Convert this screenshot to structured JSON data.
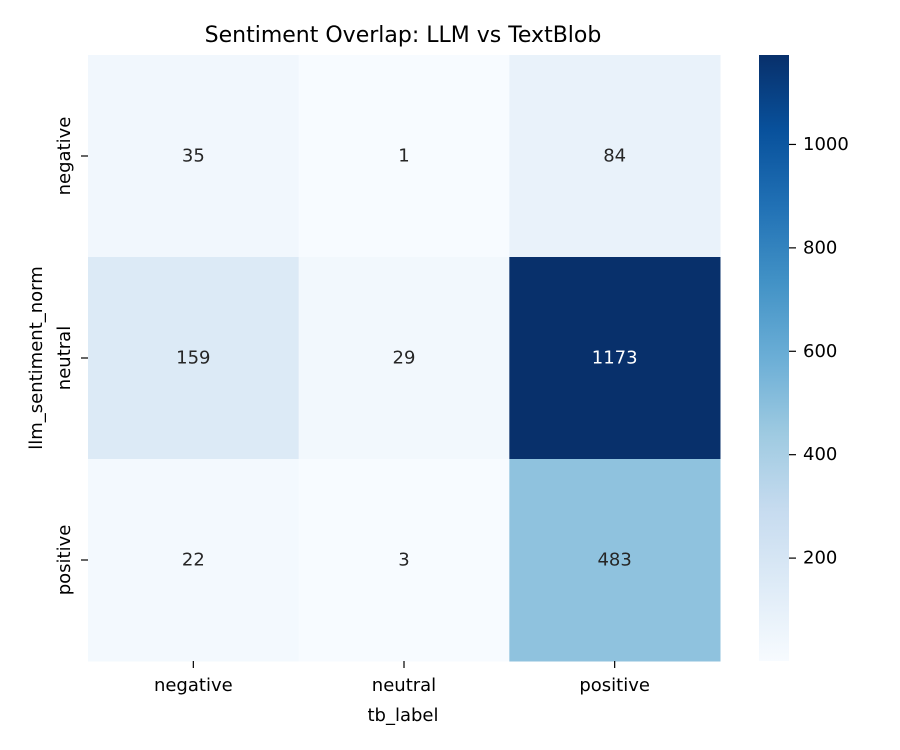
{
  "chart_data": {
    "type": "heatmap",
    "title": "Sentiment Overlap: LLM vs TextBlob",
    "xlabel": "tb_label",
    "ylabel": "llm_sentiment_norm",
    "x_categories": [
      "negative",
      "neutral",
      "positive"
    ],
    "y_categories": [
      "negative",
      "neutral",
      "positive"
    ],
    "values": [
      [
        35,
        1,
        84
      ],
      [
        159,
        29,
        1173
      ],
      [
        22,
        3,
        483
      ]
    ],
    "colormap": "Blues",
    "color_range": [
      1,
      1173
    ],
    "colorbar_ticks": [
      200,
      400,
      600,
      800,
      1000
    ],
    "colorbar_tick_labels": [
      "200",
      "400",
      "600",
      "800",
      "1000"
    ],
    "annotation_colors": {
      "light_cell": "#262626",
      "dark_cell": "#ffffff"
    }
  }
}
